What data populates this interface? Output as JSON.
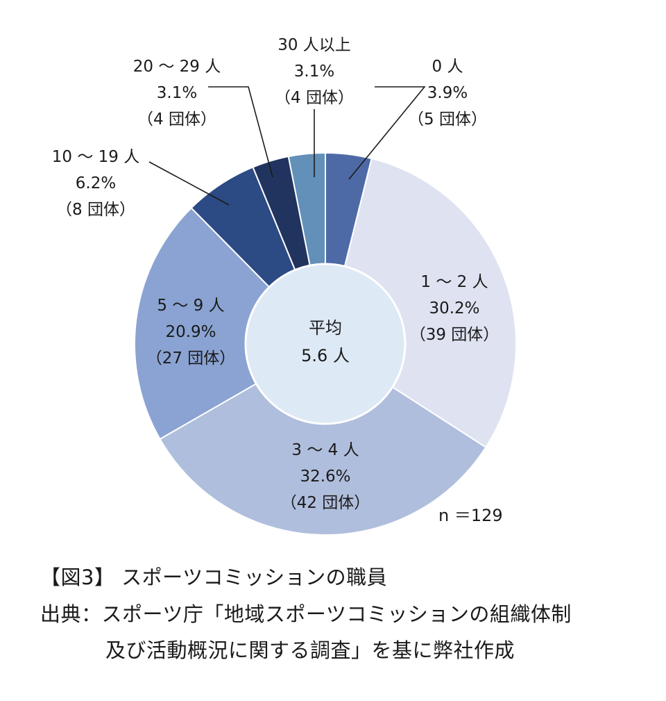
{
  "chart_data": {
    "type": "pie",
    "style": "donut",
    "center_label": {
      "line1": "平均",
      "line2": "5.6 人"
    },
    "n_label": "n ＝129",
    "slices": [
      {
        "label": "0 人",
        "percent_text": "3.9%",
        "count_text": "（5 団体）",
        "value": 3.9,
        "count": 5,
        "color": "#4e6aa6"
      },
      {
        "label": "1 ～ 2 人",
        "percent_text": "30.2%",
        "count_text": "（39 団体）",
        "value": 30.2,
        "count": 39,
        "color": "#dfe2f1"
      },
      {
        "label": "3 ～ 4 人",
        "percent_text": "32.6%",
        "count_text": "（42 団体）",
        "value": 32.6,
        "count": 42,
        "color": "#b0bedd"
      },
      {
        "label": "5 ～ 9 人",
        "percent_text": "20.9%",
        "count_text": "（27 団体）",
        "value": 20.9,
        "count": 27,
        "color": "#8aa3d2"
      },
      {
        "label": "10 ～ 19 人",
        "percent_text": "6.2%",
        "count_text": "（8 団体）",
        "value": 6.2,
        "count": 8,
        "color": "#2c4a84"
      },
      {
        "label": "20 ～ 29 人",
        "percent_text": "3.1%",
        "count_text": "（4 団体）",
        "value": 3.1,
        "count": 4,
        "color": "#21345f"
      },
      {
        "label": "30 人以上",
        "percent_text": "3.1%",
        "count_text": "（4 団体）",
        "value": 3.1,
        "count": 4,
        "color": "#6290b8"
      }
    ]
  },
  "caption": {
    "title": "【図3】 スポーツコミッションの職員",
    "source_line1": "出典：スポーツ庁「地域スポーツコミッションの組織体制",
    "source_line2": "及び活動概況に関する調査」を基に弊社作成"
  }
}
